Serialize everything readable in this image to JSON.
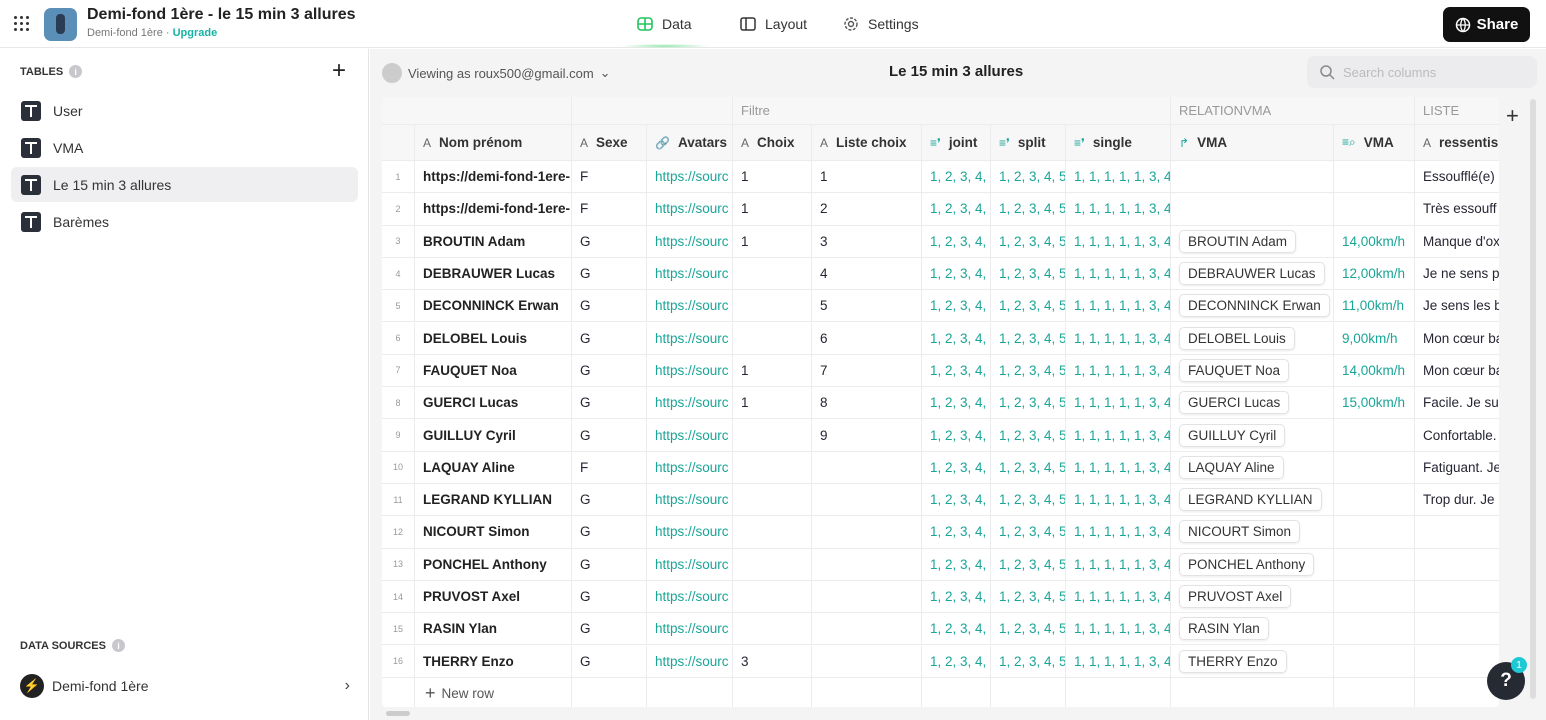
{
  "header": {
    "title": "Demi-fond 1ère - le 15 min 3 allures",
    "subtitle": "Demi-fond 1ère",
    "upgrade": "Upgrade",
    "nav": [
      {
        "label": "Data",
        "icon": "table-icon"
      },
      {
        "label": "Layout",
        "icon": "layout-icon"
      },
      {
        "label": "Settings",
        "icon": "gear-icon"
      }
    ],
    "share": "Share"
  },
  "sidebar": {
    "tables_label": "TABLES",
    "tables": [
      {
        "label": "User"
      },
      {
        "label": "VMA"
      },
      {
        "label": "Le 15 min 3 allures",
        "active": true
      },
      {
        "label": "Barèmes"
      }
    ],
    "data_sources_label": "DATA SOURCES",
    "data_source": "Demi-fond 1ère"
  },
  "main": {
    "viewing": "Viewing as roux500@gmail.com",
    "title": "Le 15 min 3 allures",
    "search_placeholder": "Search columns",
    "new_row": "New row"
  },
  "table": {
    "groups": [
      "Filtre",
      "RELATIONVMA",
      "LISTE"
    ],
    "columns": [
      {
        "type": "A",
        "label": "Nom prénom"
      },
      {
        "type": "A",
        "label": "Sexe"
      },
      {
        "type": "link",
        "label": "Avatars"
      },
      {
        "type": "A",
        "label": "Choix"
      },
      {
        "type": "A",
        "label": "Liste choix"
      },
      {
        "type": "list",
        "label": "joint"
      },
      {
        "type": "list",
        "label": "split"
      },
      {
        "type": "list",
        "label": "single"
      },
      {
        "type": "relation",
        "label": "VMA"
      },
      {
        "type": "lookup",
        "label": "VMA"
      },
      {
        "type": "A",
        "label": "ressentis"
      }
    ],
    "rows": [
      [
        "1",
        "https://demi-fond-1ere-",
        "F",
        "https://sourc",
        "1",
        "1",
        "1, 2, 3, 4,",
        "1, 2, 3, 4, 5",
        "1, 1, 1, 1, 1, 3, 4",
        "",
        "",
        "Essoufflé(e)"
      ],
      [
        "2",
        "https://demi-fond-1ere-",
        "F",
        "https://sourc",
        "1",
        "2",
        "1, 2, 3, 4,",
        "1, 2, 3, 4, 5",
        "1, 1, 1, 1, 1, 3, 4",
        "",
        "",
        "Très essouff"
      ],
      [
        "3",
        "BROUTIN Adam",
        "G",
        "https://sourc",
        "1",
        "3",
        "1, 2, 3, 4,",
        "1, 2, 3, 4, 5",
        "1, 1, 1, 1, 1, 3, 4",
        "BROUTIN Adam",
        "14,00km/h",
        "Manque d'ox"
      ],
      [
        "4",
        "DEBRAUWER Lucas",
        "G",
        "https://sourc",
        "",
        "4",
        "1, 2, 3, 4,",
        "1, 2, 3, 4, 5",
        "1, 1, 1, 1, 1, 3, 4",
        "DEBRAUWER Lucas",
        "12,00km/h",
        "Je ne sens p"
      ],
      [
        "5",
        "DECONNINCK Erwan",
        "G",
        "https://sourc",
        "",
        "5",
        "1, 2, 3, 4,",
        "1, 2, 3, 4, 5",
        "1, 1, 1, 1, 1, 3, 4",
        "DECONNINCK Erwan",
        "11,00km/h",
        "Je sens les b"
      ],
      [
        "6",
        "DELOBEL Louis",
        "G",
        "https://sourc",
        "",
        "6",
        "1, 2, 3, 4,",
        "1, 2, 3, 4, 5",
        "1, 1, 1, 1, 1, 3, 4",
        "DELOBEL Louis",
        "9,00km/h",
        "Mon cœur ba"
      ],
      [
        "7",
        "FAUQUET Noa",
        "G",
        "https://sourc",
        "1",
        "7",
        "1, 2, 3, 4,",
        "1, 2, 3, 4, 5",
        "1, 1, 1, 1, 1, 3, 4",
        "FAUQUET Noa",
        "14,00km/h",
        "Mon cœur ba"
      ],
      [
        "8",
        "GUERCI Lucas",
        "G",
        "https://sourc",
        "1",
        "8",
        "1, 2, 3, 4,",
        "1, 2, 3, 4, 5",
        "1, 1, 1, 1, 1, 3, 4",
        "GUERCI Lucas",
        "15,00km/h",
        "Facile. Je su"
      ],
      [
        "9",
        "GUILLUY Cyril",
        "G",
        "https://sourc",
        "",
        "9",
        "1, 2, 3, 4,",
        "1, 2, 3, 4, 5",
        "1, 1, 1, 1, 1, 3, 4",
        "GUILLUY Cyril",
        "",
        "Confortable."
      ],
      [
        "10",
        "LAQUAY Aline",
        "F",
        "https://sourc",
        "",
        "",
        "1, 2, 3, 4,",
        "1, 2, 3, 4, 5",
        "1, 1, 1, 1, 1, 3, 4",
        "LAQUAY Aline",
        "",
        "Fatiguant. Je"
      ],
      [
        "11",
        "LEGRAND KYLLIAN",
        "G",
        "https://sourc",
        "",
        "",
        "1, 2, 3, 4,",
        "1, 2, 3, 4, 5",
        "1, 1, 1, 1, 1, 3, 4",
        "LEGRAND KYLLIAN",
        "",
        "Trop dur. Je"
      ],
      [
        "12",
        "NICOURT Simon",
        "G",
        "https://sourc",
        "",
        "",
        "1, 2, 3, 4,",
        "1, 2, 3, 4, 5",
        "1, 1, 1, 1, 1, 3, 4",
        "NICOURT Simon",
        "",
        ""
      ],
      [
        "13",
        "PONCHEL Anthony",
        "G",
        "https://sourc",
        "",
        "",
        "1, 2, 3, 4,",
        "1, 2, 3, 4, 5",
        "1, 1, 1, 1, 1, 3, 4",
        "PONCHEL Anthony",
        "",
        ""
      ],
      [
        "14",
        "PRUVOST Axel",
        "G",
        "https://sourc",
        "",
        "",
        "1, 2, 3, 4,",
        "1, 2, 3, 4, 5",
        "1, 1, 1, 1, 1, 3, 4",
        "PRUVOST Axel",
        "",
        ""
      ],
      [
        "15",
        "RASIN Ylan",
        "G",
        "https://sourc",
        "",
        "",
        "1, 2, 3, 4,",
        "1, 2, 3, 4, 5",
        "1, 1, 1, 1, 1, 3, 4",
        "RASIN Ylan",
        "",
        ""
      ],
      [
        "16",
        "THERRY Enzo",
        "G",
        "https://sourc",
        "3",
        "",
        "1, 2, 3, 4,",
        "1, 2, 3, 4, 5",
        "1, 1, 1, 1, 1, 3, 4",
        "THERRY Enzo",
        "",
        ""
      ]
    ]
  },
  "help": {
    "label": "?",
    "badge": "1"
  },
  "colors": {
    "accent": "#1aa597",
    "share_bg": "#111111"
  }
}
